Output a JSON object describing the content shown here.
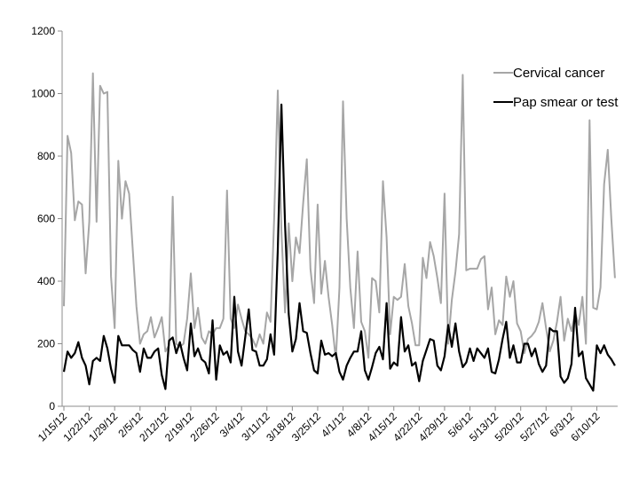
{
  "chart_data": {
    "type": "line",
    "title": "",
    "xlabel": "",
    "ylabel": "",
    "ylim": [
      0,
      1200
    ],
    "yticks": [
      0,
      200,
      400,
      600,
      800,
      1000,
      1200
    ],
    "grid": false,
    "legend_position": "top-right",
    "start_date": "1/15/12",
    "x_tick_labels": [
      "1/15/12",
      "1/22/12",
      "1/29/12",
      "2/5/12",
      "2/12/12",
      "2/19/12",
      "2/26/12",
      "3/4/12",
      "3/11/12",
      "3/18/12",
      "3/25/12",
      "4/1/12",
      "4/8/12",
      "4/15/12",
      "4/22/12",
      "4/29/12",
      "5/6/12",
      "5/13/12",
      "5/20/12",
      "5/27/12",
      "6/3/12",
      "6/10/12"
    ],
    "series": [
      {
        "name": "Cervical cancer",
        "color": "#a6a6a6",
        "values": [
          320,
          865,
          810,
          595,
          655,
          645,
          425,
          590,
          1065,
          590,
          1025,
          1000,
          1005,
          415,
          250,
          785,
          600,
          720,
          680,
          500,
          320,
          200,
          230,
          240,
          285,
          220,
          250,
          285,
          175,
          195,
          670,
          200,
          190,
          200,
          280,
          425,
          250,
          315,
          220,
          200,
          240,
          230,
          250,
          250,
          280,
          690,
          280,
          250,
          325,
          280,
          240,
          230,
          215,
          190,
          230,
          200,
          300,
          270,
          600,
          1010,
          560,
          300,
          585,
          400,
          540,
          490,
          650,
          790,
          440,
          330,
          645,
          360,
          465,
          350,
          260,
          150,
          380,
          975,
          600,
          380,
          250,
          495,
          270,
          240,
          155,
          410,
          400,
          300,
          720,
          540,
          230,
          350,
          340,
          350,
          455,
          320,
          265,
          195,
          195,
          475,
          410,
          525,
          480,
          410,
          330,
          680,
          200,
          340,
          430,
          550,
          1060,
          435,
          440,
          440,
          440,
          470,
          480,
          310,
          380,
          230,
          275,
          260,
          415,
          350,
          400,
          265,
          240,
          170,
          215,
          225,
          240,
          270,
          330,
          250,
          175,
          210,
          270,
          350,
          210,
          280,
          240,
          300,
          260,
          350,
          200,
          915,
          315,
          310,
          380,
          710,
          820,
          600,
          410
        ]
      },
      {
        "name": "Pap smear or test",
        "color": "#000000",
        "values": [
          110,
          175,
          155,
          170,
          205,
          155,
          130,
          70,
          145,
          155,
          145,
          225,
          185,
          120,
          75,
          225,
          195,
          195,
          195,
          180,
          170,
          110,
          185,
          155,
          155,
          175,
          185,
          100,
          55,
          210,
          220,
          170,
          205,
          155,
          115,
          265,
          160,
          185,
          150,
          140,
          105,
          275,
          85,
          195,
          165,
          175,
          140,
          350,
          175,
          130,
          220,
          310,
          180,
          175,
          130,
          130,
          150,
          230,
          165,
          500,
          965,
          580,
          295,
          175,
          215,
          330,
          240,
          235,
          170,
          115,
          105,
          210,
          165,
          170,
          160,
          170,
          110,
          85,
          130,
          155,
          175,
          175,
          240,
          115,
          85,
          125,
          170,
          190,
          150,
          330,
          120,
          140,
          130,
          285,
          175,
          195,
          130,
          140,
          80,
          145,
          180,
          215,
          210,
          130,
          115,
          160,
          260,
          190,
          265,
          175,
          125,
          140,
          185,
          145,
          185,
          170,
          155,
          185,
          110,
          105,
          150,
          215,
          270,
          155,
          195,
          140,
          140,
          200,
          200,
          160,
          185,
          135,
          110,
          130,
          250,
          240,
          240,
          95,
          75,
          90,
          135,
          315,
          160,
          175,
          90,
          70,
          50,
          195,
          170,
          195,
          165,
          150,
          130
        ]
      }
    ]
  }
}
